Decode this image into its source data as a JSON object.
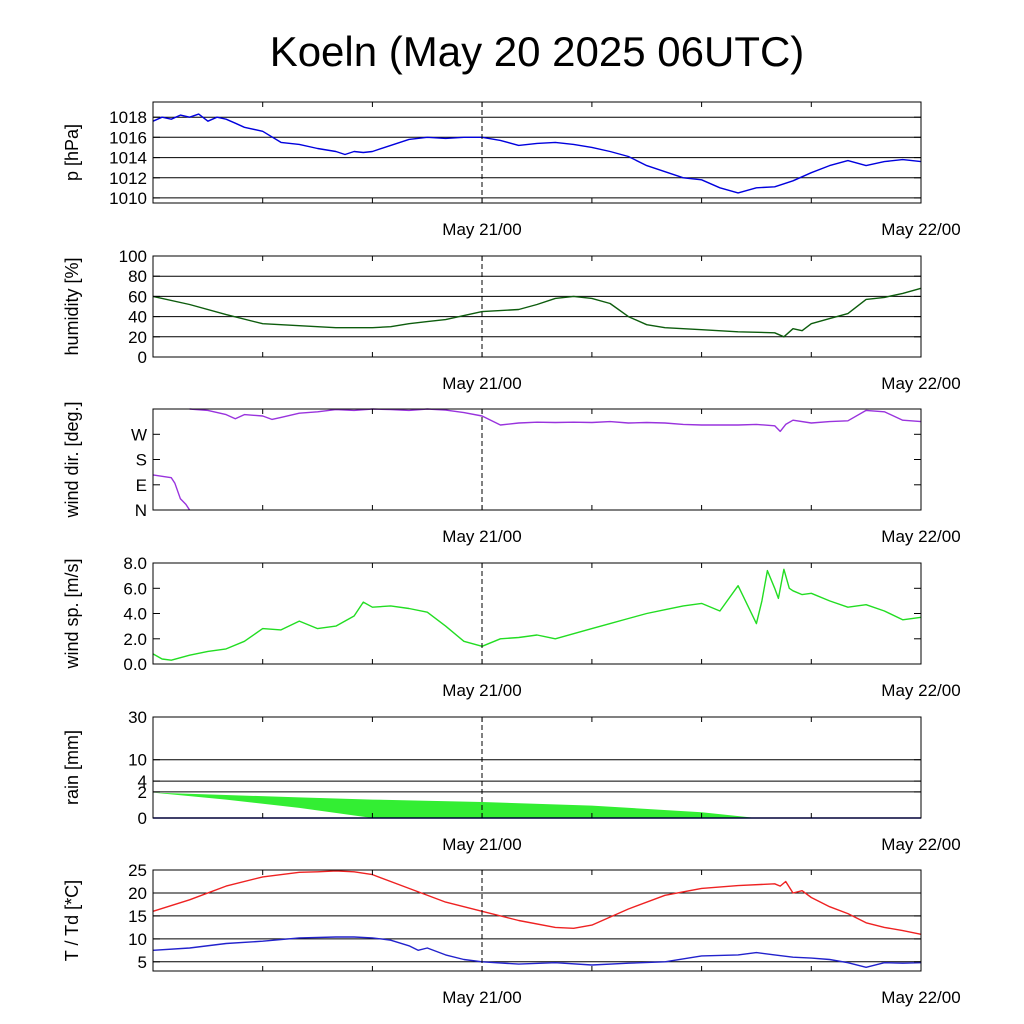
{
  "title": "Koeln (May 20 2025 06UTC)",
  "x_tick_labels": [
    "May 21/00",
    "May 22/00"
  ],
  "chart_data": [
    {
      "type": "line",
      "ylabel": "p [hPa]",
      "ylim": [
        1009.5,
        1019.5
      ],
      "yticks": [
        1010,
        1012,
        1014,
        1016,
        1018
      ],
      "ytick_labels": [
        "1010",
        "1012",
        "1014",
        "1016",
        "1018"
      ],
      "grid": [
        1010,
        1012,
        1014,
        1016,
        1018
      ],
      "xlim": [
        0,
        42
      ],
      "series": [
        {
          "color": "#0000dd",
          "x": [
            0,
            0.5,
            1,
            1.5,
            2,
            2.5,
            3,
            3.5,
            4,
            4.5,
            5,
            6,
            7,
            8,
            9,
            10,
            10.5,
            11,
            11.5,
            12,
            13,
            14,
            15,
            16,
            17,
            18,
            19,
            20,
            21,
            22,
            23,
            24,
            25,
            26,
            27,
            28,
            29,
            30,
            31,
            32,
            33,
            34,
            34.5,
            35,
            36,
            37,
            38,
            39,
            40,
            41,
            42
          ],
          "values": [
            1017.6,
            1018.0,
            1017.8,
            1018.2,
            1018.0,
            1018.3,
            1017.6,
            1018.0,
            1017.8,
            1017.4,
            1017.0,
            1016.6,
            1015.5,
            1015.3,
            1014.9,
            1014.6,
            1014.3,
            1014.6,
            1014.5,
            1014.6,
            1015.2,
            1015.8,
            1016.0,
            1015.9,
            1016.0,
            1016.0,
            1015.7,
            1015.2,
            1015.4,
            1015.5,
            1015.3,
            1015.0,
            1014.6,
            1014.1,
            1013.2,
            1012.6,
            1012.0,
            1011.8,
            1011.0,
            1010.5,
            1011.0,
            1011.1,
            1011.4,
            1011.7,
            1012.5,
            1013.2,
            1013.7,
            1013.2,
            1013.6,
            1013.8,
            1013.6
          ]
        }
      ]
    },
    {
      "type": "line",
      "ylabel": "humidity [%]",
      "ylim": [
        0,
        100
      ],
      "yticks": [
        0,
        20,
        40,
        60,
        80,
        100
      ],
      "ytick_labels": [
        "0",
        "20",
        "40",
        "60",
        "80",
        "100"
      ],
      "grid": [
        20,
        40,
        60,
        80
      ],
      "xlim": [
        0,
        42
      ],
      "series": [
        {
          "color": "#0d5c0d",
          "x": [
            0,
            2,
            4,
            6,
            8,
            10,
            12,
            13,
            14,
            15,
            16,
            18,
            20,
            21,
            22,
            23,
            24,
            25,
            26,
            27,
            28,
            30,
            32,
            34,
            34.5,
            35,
            35.5,
            36,
            37,
            38,
            39,
            40,
            41,
            42
          ],
          "values": [
            60,
            52,
            42,
            33,
            31,
            29,
            29,
            30,
            33,
            35,
            37,
            45,
            47,
            52,
            58,
            60,
            58,
            53,
            40,
            32,
            29,
            27,
            25,
            24,
            20,
            28,
            26,
            33,
            38,
            43,
            57,
            59,
            63,
            68
          ]
        }
      ]
    },
    {
      "type": "line",
      "ylabel": "wind dir. [deg.]",
      "ylim": [
        0,
        360
      ],
      "yticks": [
        0,
        90,
        180,
        270
      ],
      "ytick_labels": [
        "N",
        "E",
        "S",
        "W"
      ],
      "grid": [],
      "xlim": [
        0,
        42
      ],
      "series": [
        {
          "color": "#9933dd",
          "x": [
            0,
            0.5,
            1,
            1.2,
            1.5,
            1.8,
            2
          ],
          "values": [
            125,
            120,
            115,
            95,
            40,
            20,
            0
          ]
        },
        {
          "color": "#9933dd",
          "x": [
            2,
            3,
            4,
            4.5,
            5,
            6,
            6.5,
            7,
            8,
            9,
            10,
            11,
            12,
            13,
            14,
            15,
            16,
            17,
            18,
            19,
            20,
            21,
            22,
            23,
            24,
            25,
            26,
            27,
            28,
            29,
            30,
            31,
            32,
            33,
            34,
            34.3,
            34.6,
            35,
            36,
            37,
            38,
            39,
            40,
            41,
            42
          ],
          "values": [
            360,
            355,
            340,
            325,
            340,
            335,
            323,
            330,
            345,
            350,
            358,
            355,
            360,
            358,
            355,
            360,
            356,
            347,
            335,
            303,
            310,
            313,
            312,
            313,
            312,
            315,
            310,
            312,
            310,
            305,
            303,
            303,
            303,
            305,
            300,
            280,
            305,
            320,
            310,
            315,
            318,
            355,
            350,
            320,
            315
          ]
        }
      ]
    },
    {
      "type": "line",
      "ylabel": "wind sp. [m/s]",
      "ylim": [
        0,
        8
      ],
      "yticks": [
        0,
        2,
        4,
        6,
        8
      ],
      "ytick_labels": [
        "0.0",
        "2.0",
        "4.0",
        "6.0",
        "8.0"
      ],
      "grid": [],
      "xlim": [
        0,
        42
      ],
      "series": [
        {
          "color": "#22dd22",
          "x": [
            0,
            0.5,
            1,
            2,
            3,
            4,
            5,
            6,
            7,
            8,
            9,
            10,
            11,
            11.5,
            12,
            13,
            14,
            15,
            16,
            17,
            18,
            19,
            20,
            21,
            22,
            23,
            24,
            25,
            26,
            27,
            28,
            29,
            30,
            31,
            32,
            33,
            33.3,
            33.6,
            34,
            34.2,
            34.5,
            34.8,
            35,
            35.5,
            36,
            37,
            38,
            39,
            40,
            41,
            42
          ],
          "values": [
            0.8,
            0.4,
            0.3,
            0.7,
            1.0,
            1.2,
            1.8,
            2.8,
            2.7,
            3.4,
            2.8,
            3.0,
            3.8,
            4.9,
            4.5,
            4.6,
            4.4,
            4.1,
            3.0,
            1.8,
            1.4,
            2.0,
            2.1,
            2.3,
            2.0,
            2.4,
            2.8,
            3.2,
            3.6,
            4.0,
            4.3,
            4.6,
            4.8,
            4.2,
            6.2,
            3.2,
            5.0,
            7.4,
            6.0,
            5.2,
            7.5,
            6.0,
            5.8,
            5.5,
            5.6,
            5.0,
            4.5,
            4.7,
            4.2,
            3.5,
            3.7
          ]
        }
      ]
    },
    {
      "type": "area",
      "ylabel": "rain [mm]",
      "scale": "sqrt",
      "ylim": [
        0,
        30
      ],
      "yticks": [
        0,
        2,
        4,
        10,
        30
      ],
      "ytick_labels": [
        "0",
        "2",
        "4",
        "10",
        "30"
      ],
      "grid": [
        2,
        4,
        10,
        30
      ],
      "xlim": [
        0,
        42
      ],
      "series": [
        {
          "color": "#33ee33",
          "x": [
            0,
            4,
            8,
            12,
            18,
            24,
            30,
            33
          ],
          "upper": [
            1.9,
            1.55,
            1.25,
            1.0,
            0.75,
            0.45,
            0.1,
            0
          ],
          "lower": [
            1.9,
            1.0,
            0.3,
            0,
            0,
            0,
            0,
            0
          ]
        },
        {
          "color": "#0000aa",
          "x": [
            0,
            42
          ],
          "values": [
            0,
            0
          ]
        }
      ]
    },
    {
      "type": "line",
      "ylabel": "T / Td [*C]",
      "ylim": [
        3,
        25
      ],
      "yticks": [
        5,
        10,
        15,
        20,
        25
      ],
      "ytick_labels": [
        "5",
        "10",
        "15",
        "20",
        "25"
      ],
      "grid": [
        5,
        10,
        15,
        20,
        25
      ],
      "xlim": [
        0,
        42
      ],
      "series": [
        {
          "color": "#ee2222",
          "x": [
            0,
            2,
            4,
            6,
            8,
            9,
            10,
            11,
            12,
            14,
            16,
            18,
            20,
            22,
            23,
            24,
            26,
            28,
            30,
            32,
            34,
            34.3,
            34.6,
            35,
            35.5,
            36,
            37,
            38,
            39,
            40,
            41,
            42
          ],
          "values": [
            16,
            18.5,
            21.5,
            23.5,
            24.5,
            24.6,
            24.8,
            24.6,
            24,
            21,
            18,
            16,
            14,
            12.5,
            12.3,
            13,
            16.5,
            19.5,
            21,
            21.6,
            22,
            21.5,
            22.5,
            20,
            20.5,
            19,
            17,
            15.5,
            13.5,
            12.5,
            11.8,
            11
          ]
        },
        {
          "color": "#2222cc",
          "x": [
            0,
            2,
            4,
            6,
            8,
            10,
            11,
            12,
            13,
            14,
            14.5,
            15,
            16,
            17,
            18,
            20,
            22,
            24,
            26,
            28,
            30,
            32,
            33,
            34,
            35,
            36,
            37,
            38,
            39,
            40,
            41,
            42
          ],
          "values": [
            7.5,
            8,
            9,
            9.5,
            10.2,
            10.4,
            10.4,
            10.2,
            9.7,
            8.5,
            7.5,
            8,
            6.5,
            5.5,
            5,
            4.5,
            4.8,
            4.3,
            4.7,
            5,
            6.3,
            6.5,
            7,
            6.5,
            6,
            5.8,
            5.5,
            4.8,
            3.8,
            4.8,
            4.7,
            4.8
          ]
        }
      ]
    }
  ]
}
